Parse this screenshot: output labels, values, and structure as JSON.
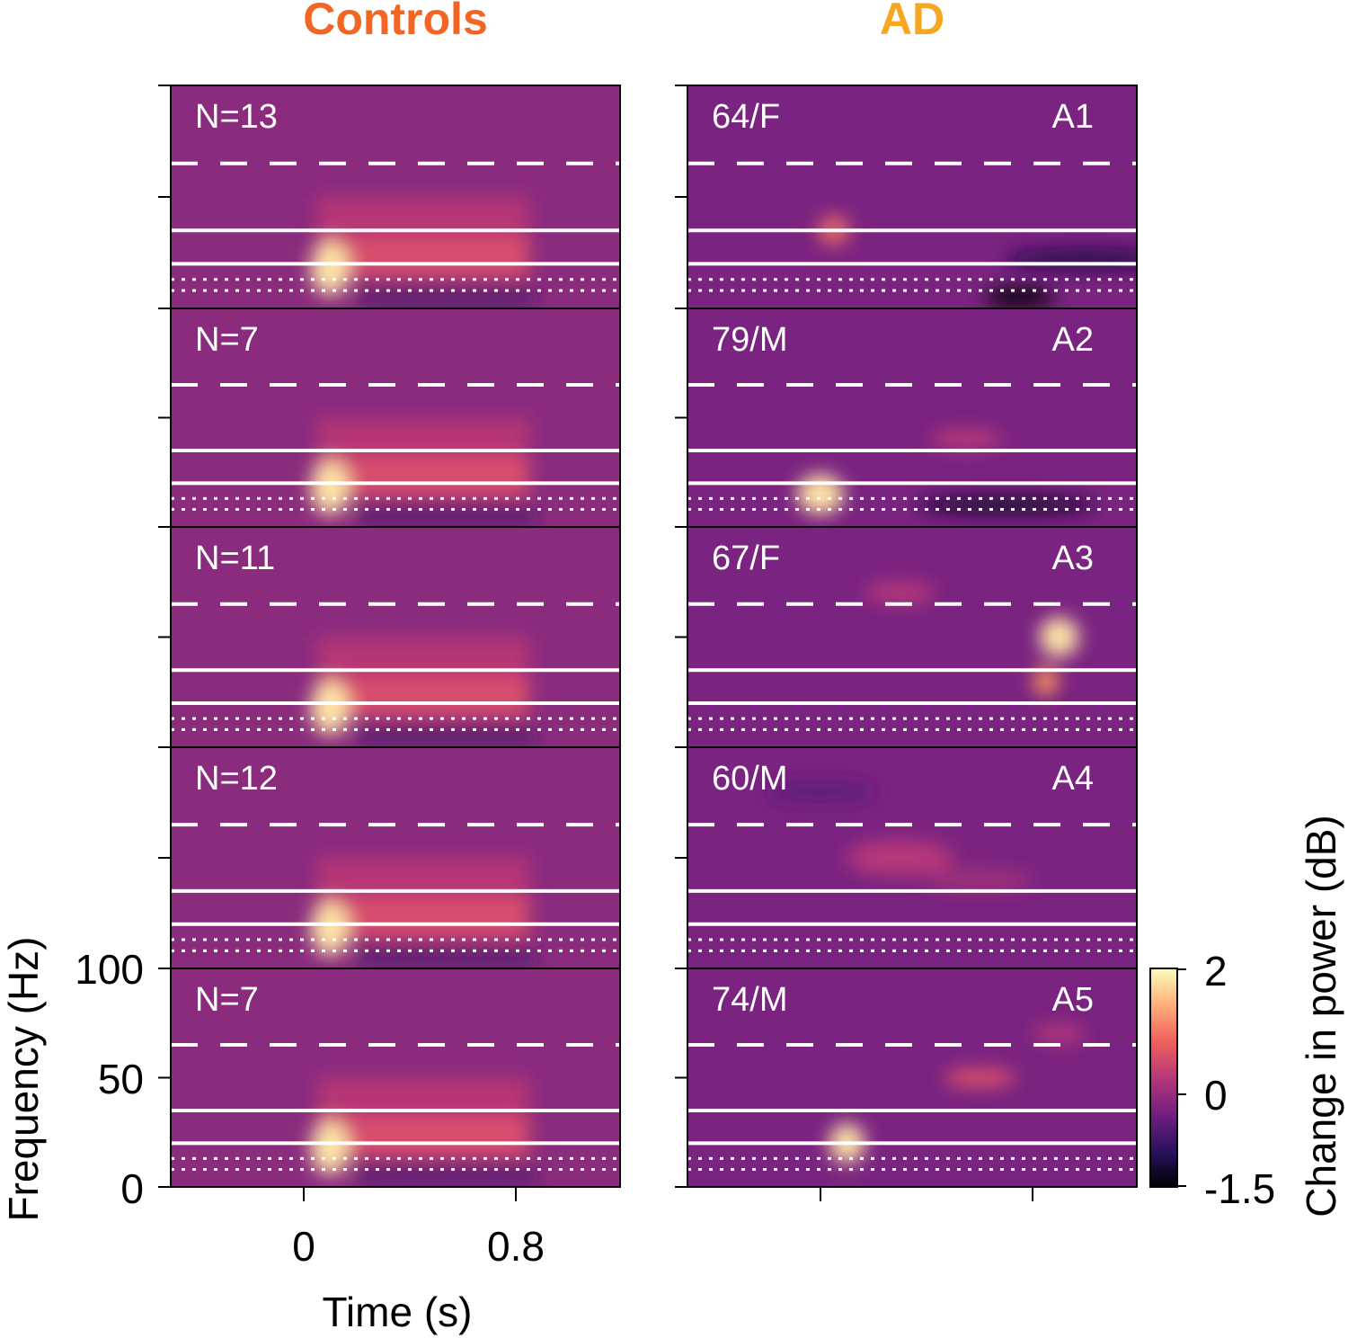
{
  "chart_data": {
    "type": "heatmap",
    "columns": [
      {
        "title": "Controls",
        "color": "#f26522",
        "panels": [
          {
            "label": "N=13"
          },
          {
            "label": "N=7"
          },
          {
            "label": "N=11"
          },
          {
            "label": "N=12"
          },
          {
            "label": "N=7"
          }
        ]
      },
      {
        "title": "AD",
        "color": "#f5a623",
        "panels": [
          {
            "label": "64/F",
            "id": "A1"
          },
          {
            "label": "79/M",
            "id": "A2"
          },
          {
            "label": "67/F",
            "id": "A3"
          },
          {
            "label": "60/M",
            "id": "A4"
          },
          {
            "label": "74/M",
            "id": "A5"
          }
        ]
      }
    ],
    "xlabel": "Time (s)",
    "xticks": [
      "0",
      "0.8"
    ],
    "ylabel": "Frequency (Hz)",
    "yticks": [
      "0",
      "50",
      "100"
    ],
    "ylim": [
      0,
      100
    ],
    "colorbar": {
      "label": "Change in power (dB)",
      "ticks": [
        "2",
        "0",
        "-1.5"
      ],
      "range": [
        -1.5,
        2
      ]
    },
    "band_lines_hz": {
      "dotted": [
        8,
        13
      ],
      "solid_lower": 20,
      "solid_upper": 35,
      "dashed": 65
    },
    "colormap": [
      "#000004",
      "#2c115f",
      "#721f81",
      "#b73779",
      "#f1605d",
      "#feb078",
      "#fcfdbf"
    ]
  }
}
